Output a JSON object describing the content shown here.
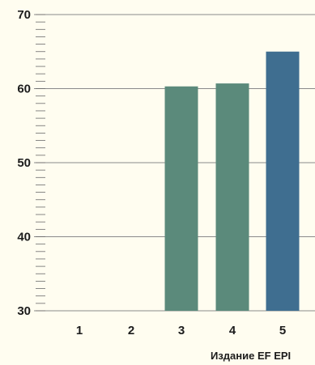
{
  "chart_data": {
    "type": "bar",
    "title": "",
    "xlabel": "Издание EF EPI",
    "ylabel": "",
    "categories": [
      "1",
      "2",
      "3",
      "4",
      "5"
    ],
    "values": [
      null,
      null,
      60.3,
      60.7,
      65.0
    ],
    "ylim": [
      30,
      70
    ],
    "yticks": [
      "30",
      "40",
      "50",
      "60",
      "70"
    ],
    "bar_colors": [
      "#5b8a7b",
      "#5b8a7b",
      "#5b8a7b",
      "#5b8a7b",
      "#3f6e90"
    ],
    "grid": true,
    "background": "#fffdf0"
  }
}
